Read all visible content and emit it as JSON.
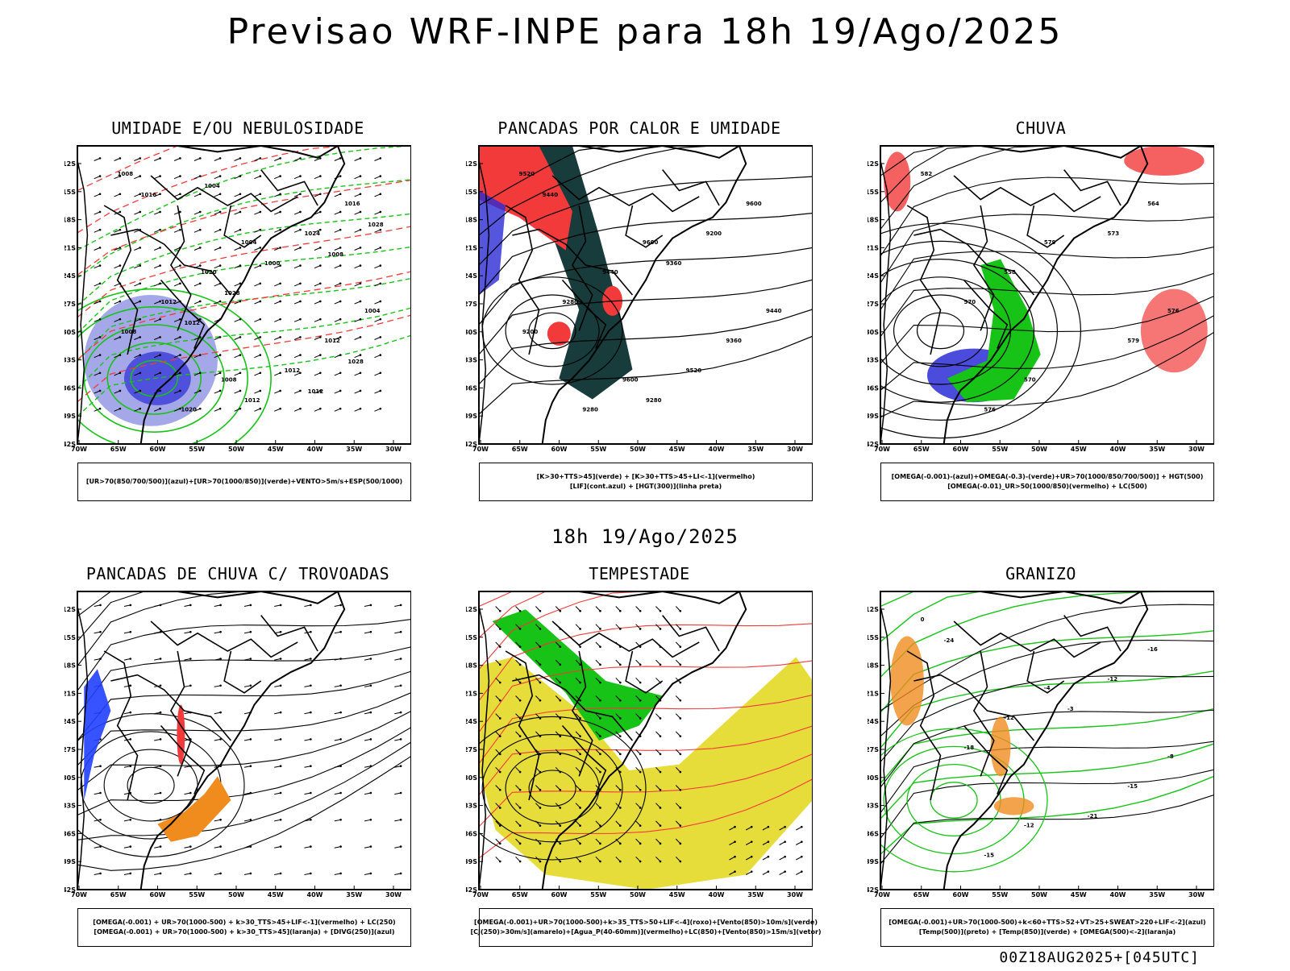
{
  "main_title": "Previsao WRF-INPE  para 18h 19/Ago/2025",
  "mid_title": "18h 19/Ago/2025",
  "footer": "00Z18AUG2025+[045UTC]",
  "axes": {
    "lat_labels": [
      "12S",
      "15S",
      "18S",
      "21S",
      "24S",
      "27S",
      "30S",
      "33S",
      "36S",
      "39S",
      "42S"
    ],
    "lon_labels": [
      "70W",
      "65W",
      "60W",
      "55W",
      "50W",
      "45W",
      "40W",
      "35W",
      "30W"
    ]
  },
  "panels": [
    {
      "id": "umidade",
      "title": "UMIDADE E/OU NEBULOSIDADE",
      "legend": [
        "[UR>70(850/700/500)](azul)+[UR>70(1000/850)](verde)+VENTO>5m/s+ESP(500/1000)"
      ],
      "contour_labels": [
        "1008",
        "1004",
        "1004",
        "1008",
        "1016",
        "1020",
        "1012",
        "1020",
        "1024",
        "1012",
        "1012",
        "1016",
        "1000",
        "1008",
        "1012",
        "1028",
        "1028",
        "1028",
        "1004",
        "1008",
        "1012",
        "1012"
      ]
    },
    {
      "id": "pancadas-calor",
      "title": "PANCADAS POR CALOR E UMIDADE",
      "legend": [
        "[K>30+TTS>45](verde) + [K>30+TTS>45+LI<-1](vermelho)",
        "[LIF](cont.azul) + [HGT(300)](linha preta)"
      ],
      "contour_labels": [
        "9520",
        "9600",
        "9440",
        "9600",
        "9600",
        "9440",
        "9360",
        "9280",
        "9200",
        "9280",
        "9520",
        "9440",
        "9360",
        "9200",
        "9280"
      ]
    },
    {
      "id": "chuva",
      "title": "CHUVA",
      "legend": [
        "[OMEGA(-0.001)-(azul)+OMEGA(-0.3)-(verde)+UR>70(1000/850/700/500)] + HGT(500)",
        "[OMEGA(-0.01)_UR>50(1000/850)(vermelho) + LC(500)"
      ],
      "contour_labels": [
        "582",
        "579",
        "576",
        "570",
        "564",
        "558",
        "579",
        "576",
        "573",
        "570"
      ]
    },
    {
      "id": "trovoadas",
      "title": "PANCADAS DE CHUVA C/ TROVOADAS",
      "legend": [
        "[OMEGA(-0.001) + UR>70(1000-500) + k>30_TTS>45+LIF<-1](vermelho) + LC(250)",
        "[OMEGA(-0.001) + UR>70(1000-500) + k>30_TTS>45](laranja) + [DIVG(250)](azul)"
      ],
      "contour_labels": []
    },
    {
      "id": "tempestade",
      "title": "TEMPESTADE",
      "legend": [
        "[OMEGA(-0.001)+UR>70(1000-500)+k>35_TTS>50+LIF<-4](roxo)+[Vento(850)>10m/s](verde)",
        "[CJ(250)>30m/s](amarelo)+[Agua_P(40-60mm)](vermelho)+LC(850)+[Vento(850)>15m/s](vetor)"
      ],
      "contour_labels": []
    },
    {
      "id": "granizo",
      "title": "GRANIZO",
      "legend": [
        "[OMEGA(-0.001)+UR>70(1000-500)+k<60+TTS>52+VT>25+SWEAT>220+LIF<-2](azul)",
        "[Temp(500)](preto) + [Temp(850)](verde) + [OMEGA(500)<-2](laranja)"
      ],
      "contour_labels": [
        "0",
        "-4",
        "-8",
        "-12",
        "-16",
        "-12",
        "-15",
        "-15",
        "-12",
        "-18",
        "-21",
        "-24",
        "-3"
      ]
    }
  ],
  "colors": {
    "blue_shade": "#9a9ee6",
    "deep_blue": "#2b2bd6",
    "green": "#17c317",
    "red": "#f23a3a",
    "dark_teal": "#183c3c",
    "yellow": "#e6dc3a",
    "orange": "#f08c1e",
    "cyan": "#2040ff"
  }
}
